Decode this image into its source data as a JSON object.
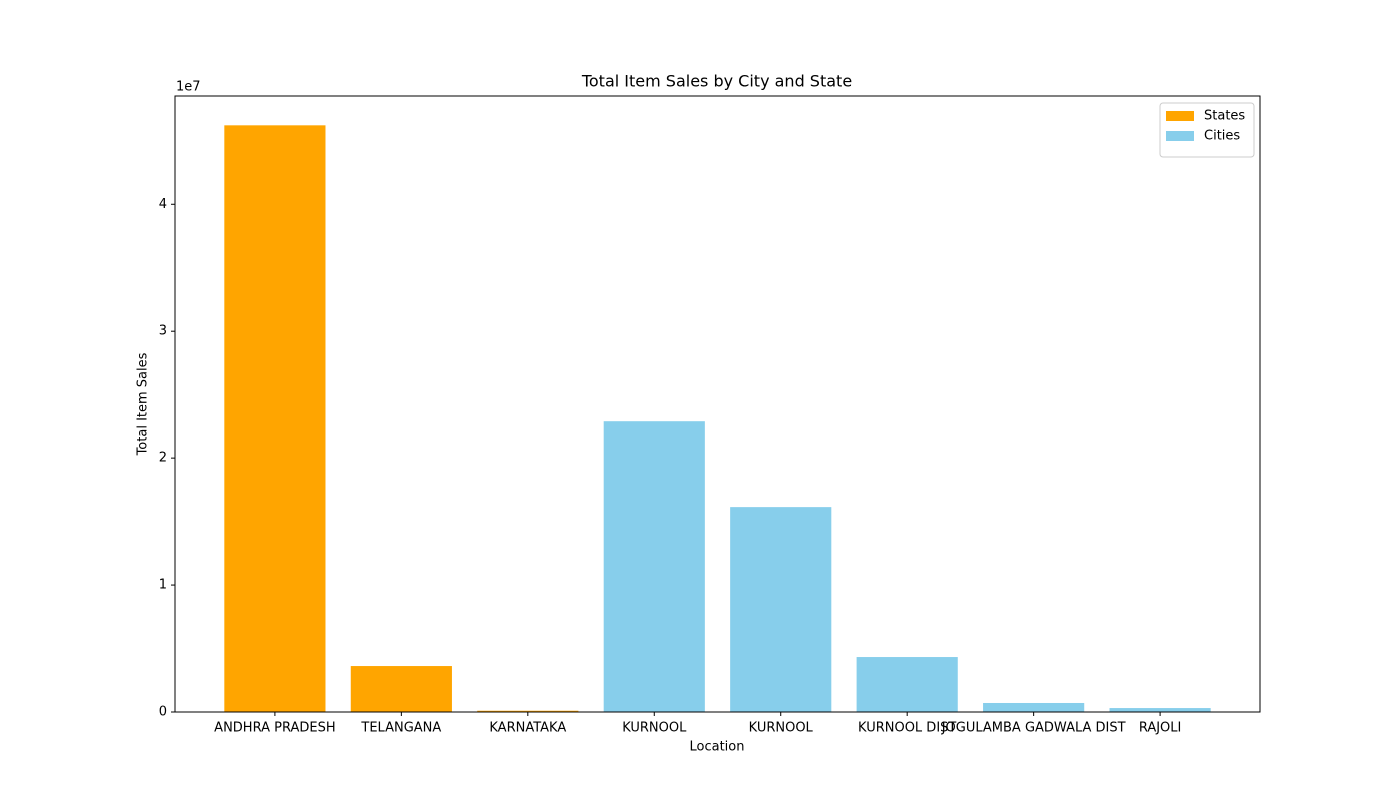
{
  "chart_data": {
    "type": "bar",
    "title": "Total Item Sales by City and State",
    "xlabel": "Location",
    "ylabel": "Total Item Sales",
    "y_offset_label": "1e7",
    "categories": [
      "ANDHRA PRADESH",
      "TELANGANA",
      "KARNATAKA",
      "KURNOOL",
      "KURNOOL",
      "KURNOOL DIST",
      "JOGULAMBA GADWALA DIST",
      "RAJOLI"
    ],
    "series": [
      {
        "name": "States",
        "color": "#ffa500",
        "values": [
          46220000,
          3620000,
          100000,
          null,
          null,
          null,
          null,
          null
        ]
      },
      {
        "name": "Cities",
        "color": "#87ceeb",
        "values": [
          null,
          null,
          null,
          22910000,
          16140000,
          4330000,
          710000,
          310000
        ]
      }
    ],
    "ylim": [
      0,
      48530000
    ],
    "yticks": [
      0,
      {
        "value": 10000000,
        "label": "1"
      },
      {
        "value": 20000000,
        "label": "2"
      },
      {
        "value": 30000000,
        "label": "3"
      },
      {
        "value": 40000000,
        "label": "4"
      }
    ],
    "legend": "upper right",
    "grid": false
  }
}
